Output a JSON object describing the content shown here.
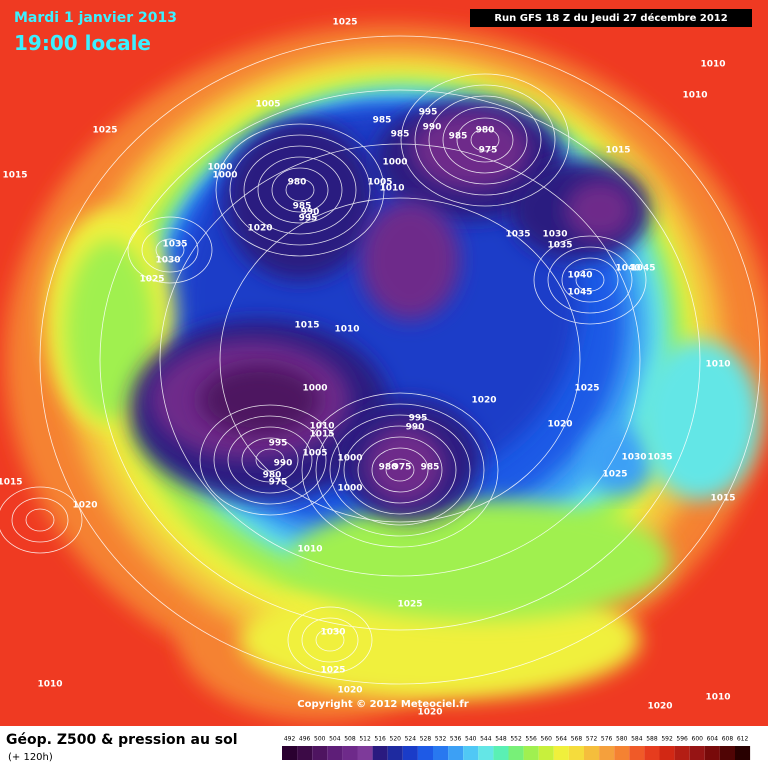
{
  "header": {
    "date": "Mardi 1 janvier 2013",
    "time": "19:00 locale",
    "run": "Run GFS 18 Z du Jeudi 27 décembre 2012"
  },
  "map": {
    "pressure_labels": [
      1025,
      1010,
      1010,
      1025,
      1005,
      995,
      985,
      990,
      985,
      985,
      980,
      975,
      1015,
      1000,
      1000,
      1000,
      980,
      1005,
      1010,
      985,
      990,
      995,
      1015,
      1020,
      1035,
      1030,
      1035,
      1035,
      1030,
      1025,
      1040,
      1045,
      1040,
      1045,
      1015,
      1010,
      1010,
      1000,
      1025,
      1020,
      995,
      990,
      1020,
      1010,
      1015,
      995,
      1005,
      1000,
      1030,
      1035,
      990,
      980,
      975,
      985,
      980,
      975,
      1025,
      1000,
      1015,
      1015,
      1020,
      1010,
      1025,
      1030,
      1025,
      1010,
      1020,
      1010,
      1020,
      1020
    ],
    "copyright": "Copyright © 2012 Meteociel.fr"
  },
  "legend": {
    "title": "Géop. Z500 & pression au sol",
    "lead": "(+ 120h)",
    "scale": [
      492,
      496,
      500,
      504,
      508,
      512,
      516,
      520,
      524,
      528,
      532,
      536,
      540,
      544,
      548,
      552,
      556,
      560,
      564,
      568,
      572,
      576,
      580,
      584,
      588,
      592,
      596,
      600,
      604,
      608,
      612
    ]
  }
}
